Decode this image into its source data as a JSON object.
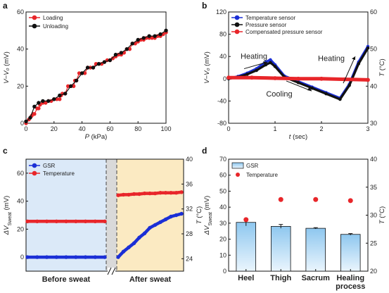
{
  "colors": {
    "red": "#e8262a",
    "black": "#111111",
    "blue": "#1b2fd6",
    "bar_fill": "#8ec7ef",
    "before_bg": "#dbe9f8",
    "after_bg": "#fbeac2",
    "gap_bg": "#d9d9d9"
  },
  "chart_data": [
    {
      "panel": "a",
      "type": "line",
      "xlabel": "P",
      "xlabel_unit": " (kPa)",
      "ylabel": "V−V₀ (mV)",
      "xlim": [
        0,
        100
      ],
      "ylim": [
        0,
        60
      ],
      "xticks": [
        "0",
        "20",
        "40",
        "60",
        "80",
        "100"
      ],
      "yticks": [
        "0",
        "20",
        "40",
        "60"
      ],
      "legend": "top-left",
      "series": [
        {
          "name": "Loading",
          "color": "#e8262a",
          "x": [
            0,
            2,
            4,
            5,
            6,
            8,
            9,
            10,
            12,
            14,
            16,
            18,
            20,
            22,
            24,
            25,
            26,
            28,
            30,
            32,
            34,
            35,
            36,
            38,
            40,
            42,
            44,
            46,
            48,
            50,
            52,
            54,
            56,
            58,
            60,
            62,
            64,
            66,
            68,
            70,
            72,
            74,
            76,
            78,
            80,
            82,
            84,
            86,
            88,
            90,
            92,
            94,
            96,
            98,
            100
          ],
          "y": [
            0,
            2,
            4,
            5,
            5,
            8,
            8,
            10,
            11,
            11,
            12,
            12,
            13,
            13,
            13,
            15,
            16,
            16,
            20,
            20,
            20,
            23,
            23,
            27,
            27,
            27,
            30,
            30,
            30,
            32,
            32,
            32,
            33,
            34,
            34,
            35,
            36,
            37,
            37,
            38,
            40,
            40,
            43,
            43,
            44,
            45,
            45,
            46,
            46,
            46,
            46,
            47,
            47,
            48,
            49
          ]
        },
        {
          "name": "Unloading",
          "color": "#111111",
          "x": [
            0,
            3,
            6,
            9,
            12,
            16,
            20,
            24,
            28,
            32,
            36,
            40,
            44,
            48,
            52,
            56,
            60,
            64,
            68,
            72,
            76,
            80,
            84,
            88,
            92,
            96,
            100
          ],
          "y": [
            1,
            3,
            9,
            11,
            12,
            12,
            13,
            15,
            16,
            20,
            23,
            27,
            30,
            30,
            32,
            33,
            34,
            37,
            38,
            40,
            43,
            45,
            46,
            47,
            47,
            48,
            50
          ]
        }
      ]
    },
    {
      "panel": "b",
      "type": "line",
      "xlabel": "t (sec)",
      "ylabel": "V−V₀ (mV)",
      "ylabel_right": "T (°C)",
      "xlim": [
        0,
        3
      ],
      "ylim": [
        -80,
        120
      ],
      "ylim_right": [
        30,
        60
      ],
      "xticks": [
        "0",
        "1",
        "2",
        "3"
      ],
      "yticks": [
        "-80",
        "-40",
        "0",
        "40",
        "80",
        "120"
      ],
      "yticks_right": [
        "30",
        "40",
        "50",
        "60"
      ],
      "legend": "top",
      "annotations": [
        "Heating",
        "Cooling",
        "Heating"
      ],
      "series": [
        {
          "name": "Temperature sensor",
          "color": "#1b2fd6",
          "x": [
            0,
            0.2,
            0.4,
            0.6,
            0.8,
            0.9,
            1.0,
            1.2,
            1.5,
            1.8,
            2.1,
            2.4,
            2.6,
            2.8,
            3.0
          ],
          "y": [
            0,
            4,
            10,
            18,
            30,
            34,
            25,
            5,
            -5,
            -15,
            -25,
            -35,
            -10,
            30,
            58
          ]
        },
        {
          "name": "Pressure sensor",
          "color": "#111111",
          "x": [
            0,
            0.2,
            0.4,
            0.6,
            0.8,
            0.9,
            1.0,
            1.2,
            1.5,
            1.8,
            2.1,
            2.4,
            2.6,
            2.8,
            3.0
          ],
          "y": [
            0,
            3,
            8,
            15,
            25,
            29,
            22,
            3,
            -7,
            -17,
            -27,
            -37,
            -12,
            27,
            55
          ]
        },
        {
          "name": "Compensated pressure sensor",
          "color": "#e8262a",
          "x": [
            0,
            0.5,
            1.0,
            1.5,
            2.0,
            2.5,
            3.0
          ],
          "y": [
            2,
            2,
            1,
            0,
            0,
            -1,
            -2
          ]
        }
      ]
    },
    {
      "panel": "c",
      "type": "line",
      "ylabel": "ΔV",
      "ylabel_sub": "Sweat",
      "ylabel_unit": " (mV)",
      "ylabel_right": "T (°C)",
      "ylim": [
        -10,
        70
      ],
      "ylim_right": [
        22,
        40
      ],
      "yticks": [
        "0",
        "20",
        "40",
        "60"
      ],
      "yticks_right": [
        "24",
        "28",
        "32",
        "36",
        "40"
      ],
      "region_labels": [
        "Before sweat",
        "After sweat"
      ],
      "legend": "top-left",
      "series": [
        {
          "name": "GSR",
          "color": "#1b2fd6",
          "segment": "before",
          "values": [
            0,
            0,
            0,
            0,
            0,
            0,
            0,
            0,
            0
          ]
        },
        {
          "name": "GSR",
          "color": "#1b2fd6",
          "segment": "after",
          "values": [
            0,
            4,
            7,
            10,
            14,
            17,
            21,
            23,
            25,
            27,
            29,
            30,
            31
          ]
        },
        {
          "name": "Temperature",
          "color": "#e8262a",
          "segment": "before",
          "values": [
            30,
            30,
            30,
            30,
            30,
            30,
            30,
            30,
            30
          ]
        },
        {
          "name": "Temperature",
          "color": "#e8262a",
          "segment": "after",
          "values": [
            34.2,
            34.3,
            34.3,
            34.4,
            34.4,
            34.5,
            34.5,
            34.5,
            34.6,
            34.6,
            34.6,
            34.6,
            34.7
          ]
        }
      ]
    },
    {
      "panel": "d",
      "type": "bar",
      "categories": [
        "Heel",
        "Thigh",
        "Sacrum",
        "Healing"
      ],
      "category_sub": [
        "",
        "",
        "",
        "process"
      ],
      "ylabel": "ΔV",
      "ylabel_sub": "Sweat",
      "ylabel_unit": " (mV)",
      "ylabel_right": "T (°C)",
      "ylim": [
        0,
        70
      ],
      "ylim_right": [
        20,
        40
      ],
      "yticks": [
        "0",
        "10",
        "20",
        "30",
        "40",
        "50",
        "60",
        "70"
      ],
      "yticks_right": [
        "20",
        "25",
        "30",
        "35",
        "40"
      ],
      "legend": "top-left",
      "series": [
        {
          "name": "GSR",
          "color": "#8ec7ef",
          "values": [
            30.5,
            28,
            26.8,
            23
          ],
          "errors": [
            2.2,
            1.2,
            0.4,
            0.5
          ]
        },
        {
          "name": "Temperature",
          "color": "#e8262a",
          "values": [
            29.2,
            32.8,
            32.8,
            32.6
          ]
        }
      ]
    }
  ]
}
